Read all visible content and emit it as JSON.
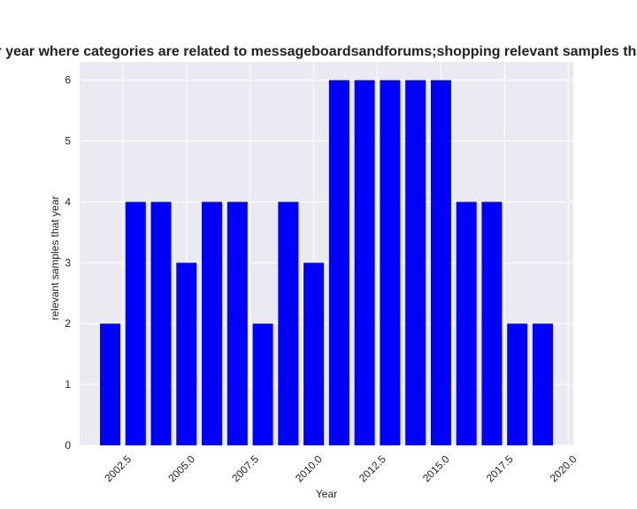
{
  "chart_data": {
    "type": "bar",
    "title": "Number of samples per year where categories are related to messageboardsandforums;shopping relevant samples that year in privacy policies",
    "xlabel": "Year",
    "ylabel": "relevant samples that year",
    "x": [
      2002,
      2003,
      2004,
      2005,
      2006,
      2007,
      2008,
      2009,
      2010,
      2011,
      2012,
      2013,
      2014,
      2015,
      2016,
      2017,
      2018,
      2019
    ],
    "values": [
      2,
      4,
      4,
      3,
      4,
      4,
      2,
      4,
      3,
      6,
      6,
      6,
      6,
      6,
      4,
      4,
      2,
      2
    ],
    "xlim": [
      2000.8,
      2020.2
    ],
    "ylim": [
      0,
      6.3
    ],
    "x_ticks": [
      2002.5,
      2005.0,
      2007.5,
      2010.0,
      2012.5,
      2015.0,
      2017.5,
      2020.0
    ],
    "x_tick_labels": [
      "2002.5",
      "2005.0",
      "2007.5",
      "2010.0",
      "2012.5",
      "2015.0",
      "2017.5",
      "2020.0"
    ],
    "y_ticks": [
      0,
      1,
      2,
      3,
      4,
      5,
      6
    ],
    "y_tick_labels": [
      "0",
      "1",
      "2",
      "3",
      "4",
      "5",
      "6"
    ],
    "bar_color": "#0000ff",
    "plot_background": "#eaeaf2",
    "grid": true
  }
}
